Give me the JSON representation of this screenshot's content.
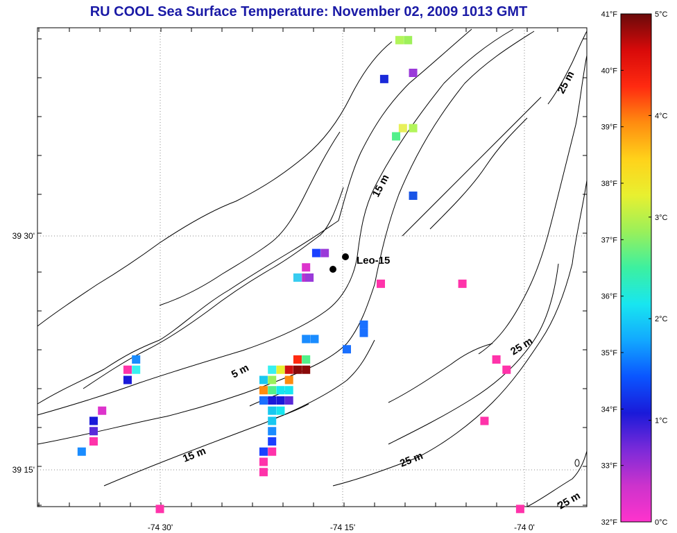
{
  "title": "RU COOL  Sea Surface Temperature:  November 02, 2009 1013 GMT",
  "map": {
    "lon_labels": [
      "-74 30'",
      "-74 15'",
      "-74 0'"
    ],
    "lat_labels": [
      "39 30'",
      "39 15'"
    ],
    "depth_labels": [
      "25 m",
      "15 m",
      "5 m",
      "25 m",
      "15 m",
      "25 m",
      "25 m"
    ],
    "station": {
      "name": "Leo-15"
    }
  },
  "colorbar": {
    "left_labels": [
      "41°F",
      "40°F",
      "39°F",
      "38°F",
      "37°F",
      "36°F",
      "35°F",
      "34°F",
      "33°F",
      "32°F"
    ],
    "right_labels": [
      "5°C",
      "4°C",
      "3°C",
      "2°C",
      "1°C",
      "0°C"
    ],
    "stops": [
      "#ff33cc",
      "#cc33cc",
      "#7a2ad9",
      "#1a1ad9",
      "#0a55ff",
      "#12a8ff",
      "#18e6f0",
      "#3cf0a0",
      "#9af05a",
      "#e8f030",
      "#ffd21a",
      "#ff8c10",
      "#ff2a10",
      "#d80a0a",
      "#6a0a0a"
    ]
  },
  "pixels": [
    {
      "x": 3.1,
      "y": 0.4,
      "c": "#b2f55a"
    },
    {
      "x": 3.6,
      "y": 0.4,
      "c": "#9ef05a"
    },
    {
      "x": 2.2,
      "y": 2.3,
      "c": "#1a2ad9"
    },
    {
      "x": 3.9,
      "y": 2.0,
      "c": "#9a3ad9"
    },
    {
      "x": 3.3,
      "y": 4.7,
      "c": "#e8f05a"
    },
    {
      "x": 3.9,
      "y": 4.7,
      "c": "#b2f55a"
    },
    {
      "x": 2.9,
      "y": 5.1,
      "c": "#52f08a"
    },
    {
      "x": 3.9,
      "y": 8.0,
      "c": "#1a55e6"
    },
    {
      "x": -1.8,
      "y": 10.8,
      "c": "#1a40ff"
    },
    {
      "x": -1.3,
      "y": 10.8,
      "c": "#9a3ad9"
    },
    {
      "x": -2.4,
      "y": 11.5,
      "c": "#dd33cc"
    },
    {
      "x": -2.4,
      "y": 12.0,
      "c": "#bb33cc"
    },
    {
      "x": -2.9,
      "y": 12.0,
      "c": "#38ccf0"
    },
    {
      "x": -2.2,
      "y": 12.0,
      "c": "#9a3ad9"
    },
    {
      "x": 2.0,
      "y": 12.3,
      "c": "#ff33aa"
    },
    {
      "x": 1.0,
      "y": 14.3,
      "c": "#1a70ff"
    },
    {
      "x": 1.0,
      "y": 14.7,
      "c": "#1a70ff"
    },
    {
      "x": -2.4,
      "y": 15.0,
      "c": "#1a8cff"
    },
    {
      "x": -1.9,
      "y": 15.0,
      "c": "#1a8cff"
    },
    {
      "x": 0.0,
      "y": 15.5,
      "c": "#1a70ff"
    },
    {
      "x": -2.9,
      "y": 16.0,
      "c": "#ff2a10"
    },
    {
      "x": -2.4,
      "y": 16.0,
      "c": "#52f08a"
    },
    {
      "x": -3.9,
      "y": 16.5,
      "c": "#e8f030"
    },
    {
      "x": -3.4,
      "y": 16.5,
      "c": "#d01010"
    },
    {
      "x": -2.9,
      "y": 16.5,
      "c": "#8a0a0a"
    },
    {
      "x": -2.4,
      "y": 16.5,
      "c": "#8a0a0a"
    },
    {
      "x": -4.4,
      "y": 16.5,
      "c": "#38f0f0"
    },
    {
      "x": -4.4,
      "y": 17.0,
      "c": "#9af05a"
    },
    {
      "x": -4.9,
      "y": 17.0,
      "c": "#18c8f0"
    },
    {
      "x": -3.4,
      "y": 17.0,
      "c": "#ff8c10"
    },
    {
      "x": -4.9,
      "y": 17.5,
      "c": "#ff8c10"
    },
    {
      "x": -4.4,
      "y": 17.5,
      "c": "#52f08a"
    },
    {
      "x": -3.9,
      "y": 17.5,
      "c": "#18e6f0"
    },
    {
      "x": -3.4,
      "y": 17.5,
      "c": "#18e6f0"
    },
    {
      "x": -4.9,
      "y": 18.0,
      "c": "#1a70ff"
    },
    {
      "x": -4.4,
      "y": 18.0,
      "c": "#1a1ad9"
    },
    {
      "x": -3.9,
      "y": 18.0,
      "c": "#1a1ad9"
    },
    {
      "x": -3.4,
      "y": 18.0,
      "c": "#5a2ad9"
    },
    {
      "x": -4.4,
      "y": 18.5,
      "c": "#18c8f0"
    },
    {
      "x": -3.9,
      "y": 18.5,
      "c": "#18e6f0"
    },
    {
      "x": -4.4,
      "y": 19.0,
      "c": "#18c8f0"
    },
    {
      "x": -4.4,
      "y": 19.5,
      "c": "#1a8cff"
    },
    {
      "x": -4.4,
      "y": 20.0,
      "c": "#1a40ff"
    },
    {
      "x": -4.9,
      "y": 20.5,
      "c": "#1a40ff"
    },
    {
      "x": -4.4,
      "y": 20.5,
      "c": "#ff33aa"
    },
    {
      "x": -4.9,
      "y": 21.0,
      "c": "#ff33aa"
    },
    {
      "x": -4.9,
      "y": 21.5,
      "c": "#ff33aa"
    },
    {
      "x": -12.4,
      "y": 16.0,
      "c": "#1a8cff"
    },
    {
      "x": -12.9,
      "y": 16.5,
      "c": "#ff33aa"
    },
    {
      "x": -12.4,
      "y": 16.5,
      "c": "#38f0f0"
    },
    {
      "x": -12.9,
      "y": 17.0,
      "c": "#1a1ad9"
    },
    {
      "x": -14.4,
      "y": 18.5,
      "c": "#dd33cc"
    },
    {
      "x": -14.9,
      "y": 19.0,
      "c": "#1a1ad9"
    },
    {
      "x": -14.9,
      "y": 19.5,
      "c": "#5a2ad9"
    },
    {
      "x": -14.9,
      "y": 20.0,
      "c": "#ff33aa"
    },
    {
      "x": -15.6,
      "y": 20.5,
      "c": "#1a8cff"
    },
    {
      "x": -11.0,
      "y": 23.3,
      "c": "#ff33aa"
    },
    {
      "x": 6.8,
      "y": 12.3,
      "c": "#ff33aa"
    },
    {
      "x": 8.8,
      "y": 16.0,
      "c": "#ff33aa"
    },
    {
      "x": 8.1,
      "y": 19.0,
      "c": "#ff33aa"
    },
    {
      "x": 9.4,
      "y": 16.5,
      "c": "#ff33aa"
    },
    {
      "x": 10.2,
      "y": 23.3,
      "c": "#ff33aa"
    }
  ]
}
